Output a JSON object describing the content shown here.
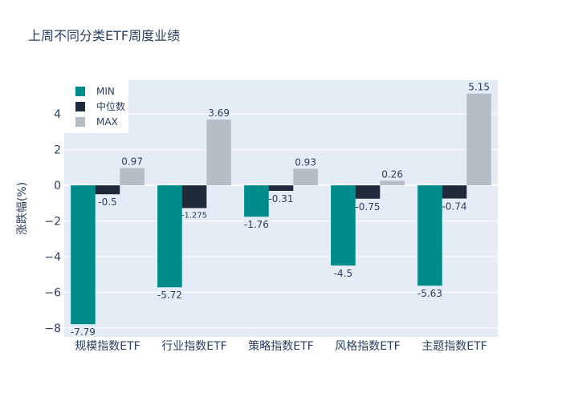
{
  "chart_data": {
    "type": "bar",
    "title": "上周不同分类ETF周度业绩",
    "xlabel": "",
    "ylabel": "涨跌幅(%)",
    "ylim": [
      -8.5,
      5.9
    ],
    "yticks": [
      -8,
      -6,
      -4,
      -2,
      0,
      2,
      4
    ],
    "yticklabels": [
      "−8",
      "−6",
      "−4",
      "−2",
      "0",
      "2",
      "4"
    ],
    "categories": [
      "规模指数ETF",
      "行业指数ETF",
      "策略指数ETF",
      "风格指数ETF",
      "主题指数ETF"
    ],
    "series": [
      {
        "name": "MIN",
        "color": "#008B8B",
        "values": [
          -7.79,
          -5.72,
          -1.76,
          -4.5,
          -5.63
        ],
        "labels": [
          "-7.79",
          "-5.72",
          "-1.76",
          "-4.5",
          "-5.63"
        ]
      },
      {
        "name": "中位数",
        "color": "#1F2A3C",
        "values": [
          -0.5,
          -1.275,
          -0.31,
          -0.75,
          -0.74
        ],
        "labels": [
          "-0.5",
          "-1.275",
          "-0.31",
          "-0.75",
          "-0.74"
        ]
      },
      {
        "name": "MAX",
        "color": "#B5BDC6",
        "values": [
          0.97,
          3.69,
          0.93,
          0.26,
          5.15
        ],
        "labels": [
          "0.97",
          "3.69",
          "0.93",
          "0.26",
          "5.15"
        ]
      }
    ],
    "legend_position": "top-left",
    "grid": true,
    "colors": {
      "plot_bg": "#E5ECF6",
      "text": "#2A3F5F",
      "grid": "#FFFFFF"
    }
  }
}
